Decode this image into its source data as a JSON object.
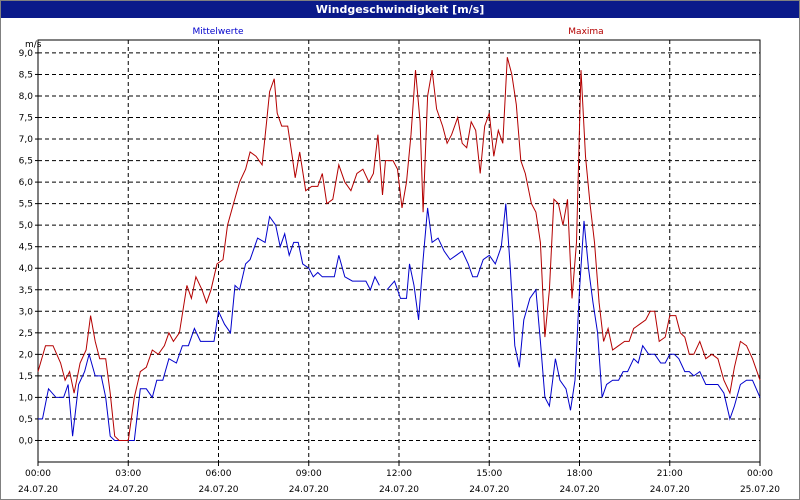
{
  "chart_data": {
    "type": "line",
    "title": "Windgeschwindigkeit [m/s]",
    "ylabel": "m/s",
    "ylim": [
      -0.5,
      9.3
    ],
    "yticks": [
      "0,0",
      "0,5",
      "1,0",
      "1,5",
      "2,0",
      "2,5",
      "3,0",
      "3,5",
      "4,0",
      "4,5",
      "5,0",
      "5,5",
      "6,0",
      "6,5",
      "7,0",
      "7,5",
      "8,0",
      "8,5",
      "9,0"
    ],
    "xlim": [
      0,
      24
    ],
    "xticks": [
      {
        "time": "00:00",
        "date": "24.07.20"
      },
      {
        "time": "03:00",
        "date": "24.07.20"
      },
      {
        "time": "06:00",
        "date": "24.07.20"
      },
      {
        "time": "09:00",
        "date": "24.07.20"
      },
      {
        "time": "12:00",
        "date": "24.07.20"
      },
      {
        "time": "15:00",
        "date": "24.07.20"
      },
      {
        "time": "18:00",
        "date": "24.07.20"
      },
      {
        "time": "21:00",
        "date": "24.07.20"
      },
      {
        "time": "00:00",
        "date": "25.07.20"
      }
    ],
    "grid": true,
    "series": [
      {
        "name": "Mittelwerte",
        "color": "#0000cc",
        "points": [
          [
            0.0,
            0.5
          ],
          [
            0.15,
            0.5
          ],
          [
            0.35,
            1.2
          ],
          [
            0.6,
            1.0
          ],
          [
            0.85,
            1.0
          ],
          [
            1.0,
            1.3
          ],
          [
            1.15,
            0.1
          ],
          [
            1.35,
            1.3
          ],
          [
            1.55,
            1.6
          ],
          [
            1.7,
            2.0
          ],
          [
            1.9,
            1.5
          ],
          [
            2.1,
            1.5
          ],
          [
            2.25,
            1.0
          ],
          [
            2.4,
            0.1
          ],
          [
            2.55,
            0.0
          ],
          [
            3.0,
            0.0
          ],
          [
            3.2,
            0.0
          ],
          [
            3.4,
            1.2
          ],
          [
            3.6,
            1.2
          ],
          [
            3.8,
            1.0
          ],
          [
            3.95,
            1.4
          ],
          [
            4.15,
            1.4
          ],
          [
            4.35,
            1.9
          ],
          [
            4.6,
            1.8
          ],
          [
            4.8,
            2.2
          ],
          [
            5.0,
            2.2
          ],
          [
            5.2,
            2.6
          ],
          [
            5.4,
            2.3
          ],
          [
            5.6,
            2.3
          ],
          [
            5.85,
            2.3
          ],
          [
            6.0,
            3.0
          ],
          [
            6.2,
            2.7
          ],
          [
            6.4,
            2.5
          ],
          [
            6.55,
            3.6
          ],
          [
            6.7,
            3.5
          ],
          [
            6.9,
            4.1
          ],
          [
            7.05,
            4.2
          ],
          [
            7.3,
            4.7
          ],
          [
            7.55,
            4.6
          ],
          [
            7.7,
            5.2
          ],
          [
            7.9,
            5.0
          ],
          [
            8.05,
            4.5
          ],
          [
            8.2,
            4.8
          ],
          [
            8.35,
            4.3
          ],
          [
            8.5,
            4.6
          ],
          [
            8.65,
            4.6
          ],
          [
            8.8,
            4.1
          ],
          [
            9.0,
            4.0
          ],
          [
            9.15,
            3.8
          ],
          [
            9.3,
            3.9
          ],
          [
            9.45,
            3.8
          ],
          [
            9.65,
            3.8
          ],
          [
            9.85,
            3.8
          ],
          [
            10.0,
            4.3
          ],
          [
            10.2,
            3.8
          ],
          [
            10.45,
            3.7
          ],
          [
            10.7,
            3.7
          ],
          [
            10.9,
            3.7
          ],
          [
            11.05,
            3.5
          ],
          [
            11.2,
            3.8
          ],
          [
            11.35,
            3.6
          ]
        ],
        "points2": [
          [
            11.6,
            3.5
          ],
          [
            11.85,
            3.7
          ],
          [
            12.05,
            3.3
          ],
          [
            12.25,
            3.3
          ],
          [
            12.35,
            4.1
          ],
          [
            12.5,
            3.6
          ],
          [
            12.65,
            2.8
          ],
          [
            12.8,
            4.2
          ],
          [
            12.95,
            5.4
          ],
          [
            13.1,
            4.6
          ],
          [
            13.3,
            4.7
          ],
          [
            13.5,
            4.4
          ],
          [
            13.7,
            4.2
          ],
          [
            13.9,
            4.3
          ],
          [
            14.1,
            4.4
          ],
          [
            14.3,
            4.1
          ],
          [
            14.45,
            3.8
          ],
          [
            14.6,
            3.8
          ],
          [
            14.8,
            4.2
          ],
          [
            15.0,
            4.3
          ],
          [
            15.2,
            4.1
          ],
          [
            15.4,
            4.5
          ],
          [
            15.55,
            5.5
          ],
          [
            15.7,
            4.0
          ],
          [
            15.85,
            2.2
          ],
          [
            16.0,
            1.7
          ],
          [
            16.15,
            2.8
          ],
          [
            16.35,
            3.3
          ],
          [
            16.55,
            3.5
          ],
          [
            16.7,
            2.3
          ],
          [
            16.85,
            1.0
          ],
          [
            17.0,
            0.8
          ],
          [
            17.2,
            1.9
          ],
          [
            17.35,
            1.4
          ],
          [
            17.55,
            1.2
          ],
          [
            17.7,
            0.7
          ],
          [
            17.85,
            1.4
          ],
          [
            18.0,
            3.5
          ],
          [
            18.15,
            5.1
          ],
          [
            18.3,
            4.0
          ],
          [
            18.45,
            3.2
          ],
          [
            18.6,
            2.5
          ],
          [
            18.75,
            1.0
          ],
          [
            18.9,
            1.3
          ],
          [
            19.1,
            1.4
          ],
          [
            19.3,
            1.4
          ],
          [
            19.45,
            1.6
          ],
          [
            19.6,
            1.6
          ],
          [
            19.8,
            1.9
          ],
          [
            19.95,
            1.8
          ],
          [
            20.1,
            2.2
          ],
          [
            20.3,
            2.0
          ],
          [
            20.5,
            2.0
          ],
          [
            20.7,
            1.8
          ],
          [
            20.85,
            1.8
          ],
          [
            21.0,
            2.0
          ],
          [
            21.15,
            2.0
          ],
          [
            21.3,
            1.9
          ],
          [
            21.5,
            1.6
          ],
          [
            21.65,
            1.6
          ],
          [
            21.8,
            1.5
          ],
          [
            22.0,
            1.6
          ],
          [
            22.2,
            1.3
          ],
          [
            22.4,
            1.3
          ],
          [
            22.6,
            1.3
          ],
          [
            22.8,
            1.1
          ],
          [
            23.0,
            0.5
          ],
          [
            23.15,
            0.8
          ],
          [
            23.35,
            1.3
          ],
          [
            23.55,
            1.4
          ],
          [
            23.75,
            1.4
          ],
          [
            24.0,
            1.0
          ]
        ]
      },
      {
        "name": "Maxima",
        "color": "#b40000",
        "points": [
          [
            0.0,
            1.6
          ],
          [
            0.25,
            2.2
          ],
          [
            0.5,
            2.2
          ],
          [
            0.75,
            1.8
          ],
          [
            0.9,
            1.4
          ],
          [
            1.05,
            1.6
          ],
          [
            1.2,
            1.1
          ],
          [
            1.4,
            1.8
          ],
          [
            1.6,
            2.1
          ],
          [
            1.75,
            2.9
          ],
          [
            1.9,
            2.3
          ],
          [
            2.05,
            1.9
          ],
          [
            2.25,
            1.9
          ],
          [
            2.4,
            1.1
          ],
          [
            2.55,
            0.1
          ],
          [
            2.7,
            0.0
          ],
          [
            3.0,
            0.0
          ],
          [
            3.2,
            1.0
          ],
          [
            3.4,
            1.6
          ],
          [
            3.6,
            1.7
          ],
          [
            3.8,
            2.1
          ],
          [
            4.0,
            2.0
          ],
          [
            4.2,
            2.2
          ],
          [
            4.35,
            2.5
          ],
          [
            4.5,
            2.3
          ],
          [
            4.7,
            2.5
          ],
          [
            4.95,
            3.6
          ],
          [
            5.1,
            3.3
          ],
          [
            5.25,
            3.8
          ],
          [
            5.45,
            3.5
          ],
          [
            5.6,
            3.2
          ],
          [
            5.75,
            3.5
          ],
          [
            5.95,
            4.1
          ],
          [
            6.15,
            4.2
          ],
          [
            6.3,
            5.0
          ],
          [
            6.5,
            5.5
          ],
          [
            6.7,
            6.0
          ],
          [
            6.9,
            6.3
          ],
          [
            7.05,
            6.7
          ],
          [
            7.25,
            6.6
          ],
          [
            7.45,
            6.4
          ],
          [
            7.6,
            7.4
          ],
          [
            7.7,
            8.1
          ],
          [
            7.85,
            8.4
          ],
          [
            7.95,
            7.6
          ],
          [
            8.1,
            7.3
          ],
          [
            8.3,
            7.3
          ],
          [
            8.45,
            6.6
          ],
          [
            8.55,
            6.1
          ],
          [
            8.7,
            6.7
          ],
          [
            8.9,
            5.8
          ],
          [
            9.1,
            5.9
          ],
          [
            9.3,
            5.9
          ],
          [
            9.45,
            6.2
          ],
          [
            9.6,
            5.5
          ],
          [
            9.8,
            5.6
          ],
          [
            10.0,
            6.4
          ],
          [
            10.2,
            6.0
          ],
          [
            10.4,
            5.8
          ],
          [
            10.6,
            6.2
          ],
          [
            10.8,
            6.3
          ],
          [
            11.0,
            6.0
          ],
          [
            11.15,
            6.2
          ],
          [
            11.3,
            7.1
          ],
          [
            11.45,
            5.7
          ],
          [
            11.55,
            6.5
          ],
          [
            11.8,
            6.5
          ],
          [
            11.95,
            6.3
          ],
          [
            12.1,
            5.4
          ],
          [
            12.25,
            6.0
          ],
          [
            12.4,
            7.1
          ],
          [
            12.55,
            8.6
          ],
          [
            12.7,
            7.4
          ],
          [
            12.8,
            5.3
          ],
          [
            12.95,
            8.0
          ],
          [
            13.1,
            8.6
          ],
          [
            13.25,
            7.7
          ],
          [
            13.45,
            7.3
          ],
          [
            13.6,
            6.9
          ],
          [
            13.75,
            7.1
          ],
          [
            13.95,
            7.5
          ],
          [
            14.1,
            6.9
          ],
          [
            14.25,
            6.8
          ],
          [
            14.4,
            7.4
          ],
          [
            14.55,
            7.2
          ],
          [
            14.7,
            6.2
          ],
          [
            14.85,
            7.3
          ],
          [
            15.0,
            7.6
          ],
          [
            15.15,
            6.6
          ],
          [
            15.3,
            7.2
          ],
          [
            15.45,
            6.9
          ],
          [
            15.6,
            8.9
          ],
          [
            15.75,
            8.5
          ],
          [
            15.9,
            7.8
          ],
          [
            16.05,
            6.5
          ],
          [
            16.2,
            6.2
          ],
          [
            16.4,
            5.5
          ],
          [
            16.55,
            5.3
          ],
          [
            16.7,
            4.6
          ],
          [
            16.85,
            2.4
          ],
          [
            17.0,
            3.5
          ],
          [
            17.15,
            5.6
          ],
          [
            17.3,
            5.5
          ],
          [
            17.45,
            5.0
          ],
          [
            17.6,
            5.6
          ],
          [
            17.75,
            3.3
          ],
          [
            17.9,
            4.6
          ],
          [
            18.05,
            8.6
          ],
          [
            18.2,
            6.6
          ],
          [
            18.35,
            5.5
          ],
          [
            18.5,
            4.6
          ],
          [
            18.65,
            3.2
          ],
          [
            18.8,
            2.3
          ],
          [
            18.95,
            2.6
          ],
          [
            19.1,
            2.1
          ],
          [
            19.3,
            2.2
          ],
          [
            19.5,
            2.3
          ],
          [
            19.65,
            2.3
          ],
          [
            19.8,
            2.6
          ],
          [
            20.0,
            2.7
          ],
          [
            20.2,
            2.8
          ],
          [
            20.35,
            3.0
          ],
          [
            20.5,
            3.0
          ],
          [
            20.65,
            2.3
          ],
          [
            20.85,
            2.4
          ],
          [
            21.0,
            2.9
          ],
          [
            21.2,
            2.9
          ],
          [
            21.35,
            2.5
          ],
          [
            21.5,
            2.4
          ],
          [
            21.65,
            2.0
          ],
          [
            21.8,
            2.0
          ],
          [
            22.0,
            2.3
          ],
          [
            22.2,
            1.9
          ],
          [
            22.4,
            2.0
          ],
          [
            22.6,
            1.9
          ],
          [
            22.8,
            1.4
          ],
          [
            23.0,
            1.1
          ],
          [
            23.15,
            1.7
          ],
          [
            23.35,
            2.3
          ],
          [
            23.55,
            2.2
          ],
          [
            23.75,
            1.9
          ],
          [
            24.0,
            1.4
          ]
        ]
      }
    ]
  }
}
